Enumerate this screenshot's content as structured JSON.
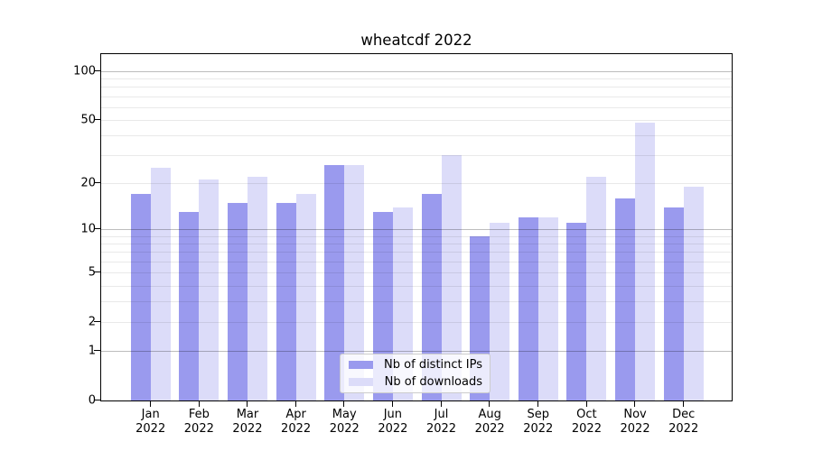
{
  "chart_data": {
    "type": "bar",
    "title": "wheatcdf 2022",
    "categories": [
      "Jan 2022",
      "Feb 2022",
      "Mar 2022",
      "Apr 2022",
      "May 2022",
      "Jun 2022",
      "Jul 2022",
      "Aug 2022",
      "Sep 2022",
      "Oct 2022",
      "Nov 2022",
      "Dec 2022"
    ],
    "series": [
      {
        "name": "Nb of distinct IPs",
        "color": "#9a9aee",
        "values": [
          17,
          13,
          15,
          15,
          26,
          13,
          17,
          9,
          12,
          11,
          16,
          14
        ]
      },
      {
        "name": "Nb of downloads",
        "color": "#dcdcf9",
        "values": [
          25,
          21,
          22,
          17,
          26,
          14,
          30,
          11,
          12,
          22,
          48,
          19
        ]
      }
    ],
    "xlabel": "",
    "ylabel": "",
    "yscale": "log1p",
    "ylim": [
      0,
      127
    ],
    "y_labeled_ticks": [
      100,
      50,
      20,
      10,
      5,
      2,
      1,
      0
    ],
    "y_decade_gridlines": [
      1,
      10,
      100
    ],
    "y_minor_gridlines": [
      2,
      3,
      4,
      5,
      6,
      7,
      8,
      9,
      20,
      30,
      40,
      50,
      60,
      70,
      80,
      90
    ],
    "grid": true,
    "grid_over_bars": true,
    "legend_position": "lower center"
  }
}
